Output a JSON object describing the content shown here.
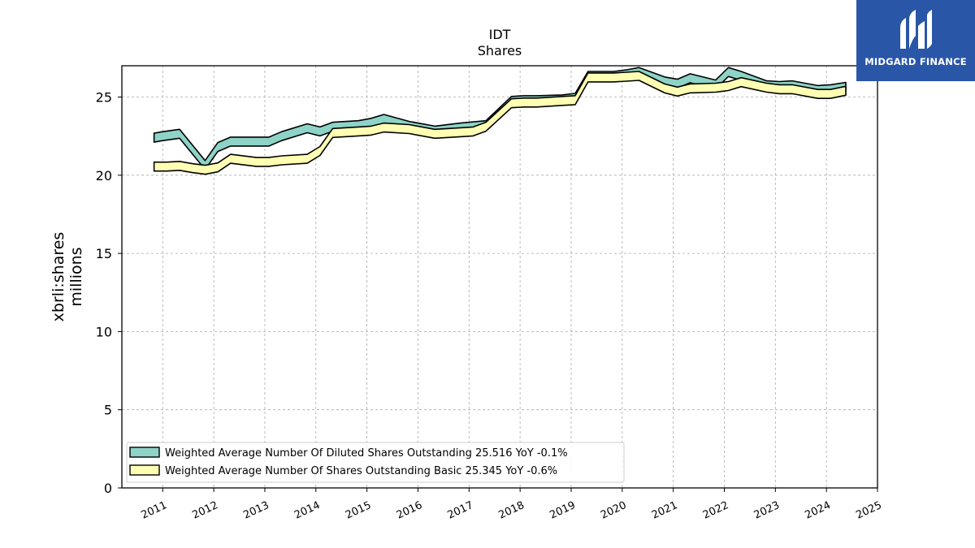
{
  "logo": {
    "text": "MIDGARD FINANCE"
  },
  "chart_data": {
    "type": "line",
    "title": "IDT",
    "subtitle": "Shares",
    "ylabel_line1": "xbrli:shares",
    "ylabel_line2": "millions",
    "xlim": [
      2010.2,
      2025.0
    ],
    "ylim": [
      0,
      27
    ],
    "y_ticks": [
      0,
      5,
      10,
      15,
      20,
      25
    ],
    "x_ticks": [
      2011,
      2012,
      2013,
      2014,
      2015,
      2016,
      2017,
      2018,
      2019,
      2020,
      2021,
      2022,
      2023,
      2024,
      2025
    ],
    "grid": true,
    "legend_position": "lower-left",
    "series": [
      {
        "name": "Weighted Average Number Of Diluted Shares Outstanding  25.516 YoY -0.1%",
        "color": "#8dd3c7",
        "points": [
          [
            2010.83,
            22.4
          ],
          [
            2011.0,
            22.5
          ],
          [
            2011.33,
            22.65
          ],
          [
            2011.83,
            20.65
          ],
          [
            2012.08,
            21.8
          ],
          [
            2012.33,
            22.15
          ],
          [
            2012.58,
            22.15
          ],
          [
            2013.08,
            22.15
          ],
          [
            2013.33,
            22.5
          ],
          [
            2013.83,
            23.0
          ],
          [
            2014.08,
            22.8
          ],
          [
            2014.33,
            23.1
          ],
          [
            2014.83,
            23.2
          ],
          [
            2015.08,
            23.35
          ],
          [
            2015.33,
            23.6
          ],
          [
            2015.83,
            23.15
          ],
          [
            2016.33,
            22.85
          ],
          [
            2016.83,
            23.05
          ],
          [
            2017.33,
            23.2
          ],
          [
            2017.83,
            24.75
          ],
          [
            2018.08,
            24.8
          ],
          [
            2018.33,
            24.8
          ],
          [
            2018.83,
            24.85
          ],
          [
            2019.08,
            24.95
          ],
          [
            2019.33,
            26.35
          ],
          [
            2019.83,
            26.35
          ],
          [
            2020.08,
            26.45
          ],
          [
            2020.33,
            26.6
          ],
          [
            2020.83,
            26.0
          ],
          [
            2021.08,
            25.85
          ],
          [
            2021.33,
            26.2
          ],
          [
            2021.83,
            25.8
          ],
          [
            2022.08,
            26.6
          ],
          [
            2022.33,
            26.35
          ],
          [
            2022.83,
            25.75
          ],
          [
            2023.08,
            25.7
          ],
          [
            2023.33,
            25.75
          ],
          [
            2023.83,
            25.45
          ],
          [
            2024.08,
            25.5
          ],
          [
            2024.38,
            25.65
          ]
        ]
      },
      {
        "name": "Weighted Average Number Of Shares Outstanding Basic  25.345 YoY -0.6%",
        "color": "#ffffb3",
        "points": [
          [
            2010.83,
            20.55
          ],
          [
            2011.08,
            20.55
          ],
          [
            2011.33,
            20.6
          ],
          [
            2011.58,
            20.45
          ],
          [
            2011.83,
            20.35
          ],
          [
            2012.08,
            20.5
          ],
          [
            2012.33,
            21.05
          ],
          [
            2012.83,
            20.85
          ],
          [
            2013.08,
            20.85
          ],
          [
            2013.33,
            20.95
          ],
          [
            2013.83,
            21.05
          ],
          [
            2014.08,
            21.55
          ],
          [
            2014.33,
            22.7
          ],
          [
            2014.83,
            22.8
          ],
          [
            2015.08,
            22.85
          ],
          [
            2015.33,
            23.05
          ],
          [
            2015.83,
            22.95
          ],
          [
            2016.33,
            22.65
          ],
          [
            2016.83,
            22.75
          ],
          [
            2017.08,
            22.8
          ],
          [
            2017.33,
            23.1
          ],
          [
            2017.83,
            24.6
          ],
          [
            2018.08,
            24.65
          ],
          [
            2018.33,
            24.65
          ],
          [
            2018.83,
            24.75
          ],
          [
            2019.08,
            24.8
          ],
          [
            2019.33,
            26.25
          ],
          [
            2019.83,
            26.25
          ],
          [
            2020.08,
            26.3
          ],
          [
            2020.33,
            26.35
          ],
          [
            2020.83,
            25.55
          ],
          [
            2021.08,
            25.35
          ],
          [
            2021.33,
            25.55
          ],
          [
            2021.83,
            25.6
          ],
          [
            2022.08,
            25.7
          ],
          [
            2022.33,
            25.95
          ],
          [
            2022.83,
            25.6
          ],
          [
            2023.08,
            25.5
          ],
          [
            2023.33,
            25.5
          ],
          [
            2023.83,
            25.2
          ],
          [
            2024.08,
            25.2
          ],
          [
            2024.38,
            25.4
          ]
        ]
      }
    ]
  }
}
